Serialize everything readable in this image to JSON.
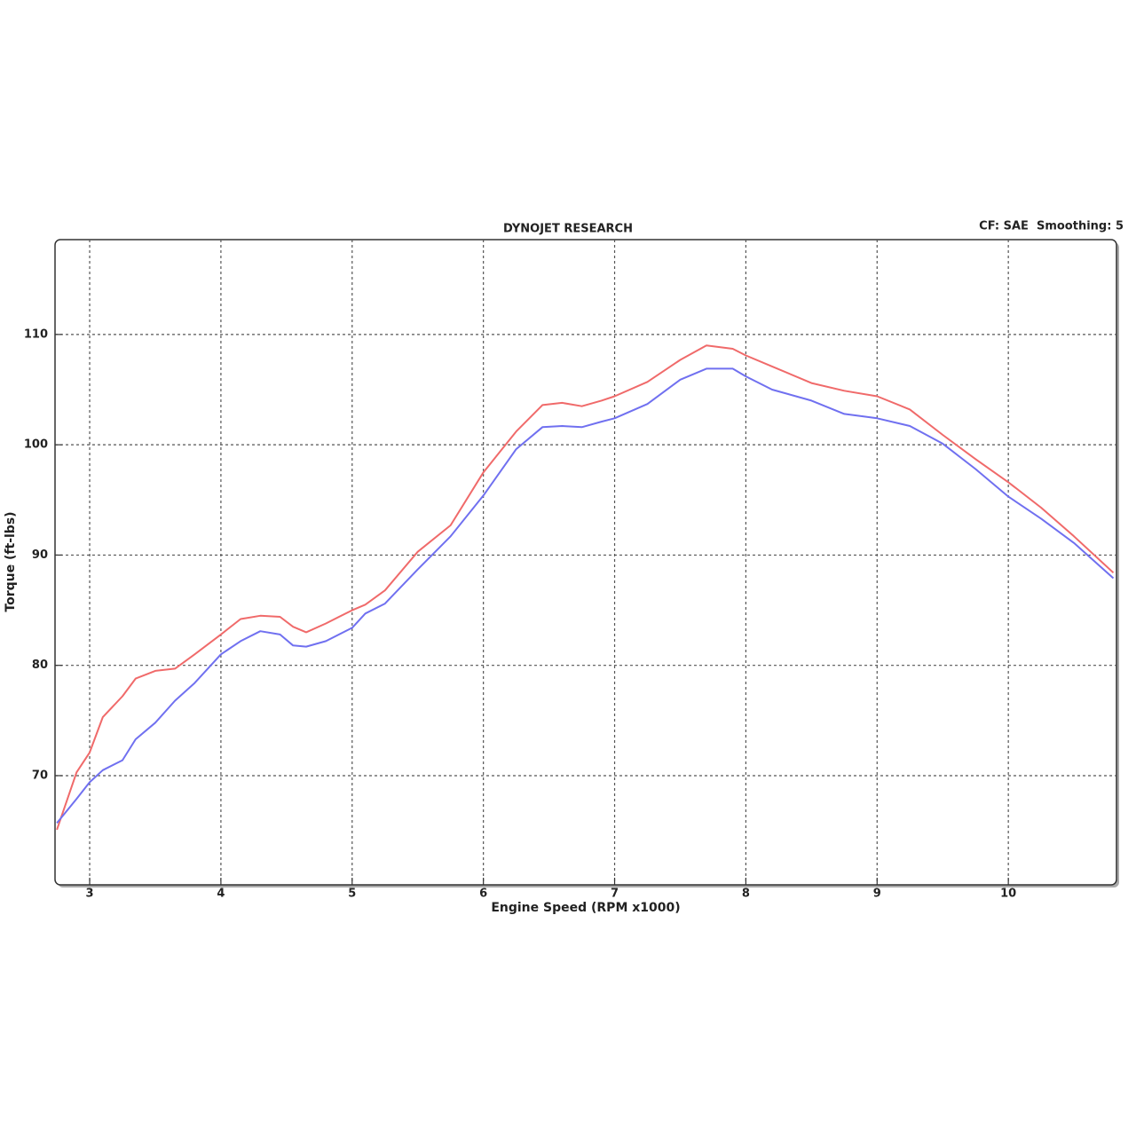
{
  "chart_data": {
    "type": "line",
    "title": "DYNOJET RESEARCH",
    "subtitle": "CF: SAE  Smoothing: 5",
    "x_label": "Engine Speed (RPM x1000)",
    "y_label": "Torque (ft-lbs)",
    "x": [
      2.75,
      2.9,
      3.0,
      3.1,
      3.25,
      3.35,
      3.5,
      3.65,
      3.8,
      4.0,
      4.15,
      4.3,
      4.45,
      4.55,
      4.65,
      4.8,
      5.0,
      5.1,
      5.25,
      5.5,
      5.75,
      6.0,
      6.25,
      6.45,
      6.6,
      6.75,
      6.9,
      7.0,
      7.25,
      7.5,
      7.7,
      7.9,
      8.0,
      8.2,
      8.5,
      8.75,
      9.0,
      9.25,
      9.5,
      9.75,
      10.0,
      10.25,
      10.5,
      10.8
    ],
    "series": [
      {
        "color": "#f06a6a",
        "values": [
          65.1,
          70.3,
          72.1,
          75.3,
          77.2,
          78.8,
          79.5,
          79.7,
          81.0,
          82.8,
          84.2,
          84.5,
          84.4,
          83.5,
          83.0,
          83.8,
          85.0,
          85.5,
          86.8,
          90.3,
          92.7,
          97.5,
          101.2,
          103.6,
          103.8,
          103.5,
          104.0,
          104.4,
          105.7,
          107.7,
          109.0,
          108.7,
          108.1,
          107.1,
          105.6,
          104.9,
          104.4,
          103.2,
          100.9,
          98.7,
          96.6,
          94.3,
          91.7,
          88.4
        ]
      },
      {
        "color": "#7070f0",
        "values": [
          65.7,
          67.9,
          69.4,
          70.5,
          71.4,
          73.3,
          74.8,
          76.8,
          78.4,
          81.0,
          82.2,
          83.1,
          82.8,
          81.8,
          81.7,
          82.2,
          83.4,
          84.7,
          85.6,
          88.7,
          91.7,
          95.4,
          99.6,
          101.6,
          101.7,
          101.6,
          102.1,
          102.4,
          103.7,
          105.9,
          106.9,
          106.9,
          106.2,
          105.0,
          104.0,
          102.8,
          102.4,
          101.7,
          100.1,
          97.8,
          95.3,
          93.3,
          91.1,
          87.9
        ]
      }
    ],
    "xlim": [
      2.736,
      10.824
    ],
    "ylim": [
      60.1,
      118.6
    ],
    "xticks": [
      3,
      4,
      5,
      6,
      7,
      8,
      9,
      10
    ],
    "yticks": [
      70,
      80,
      90,
      100,
      110
    ],
    "grid": true
  }
}
